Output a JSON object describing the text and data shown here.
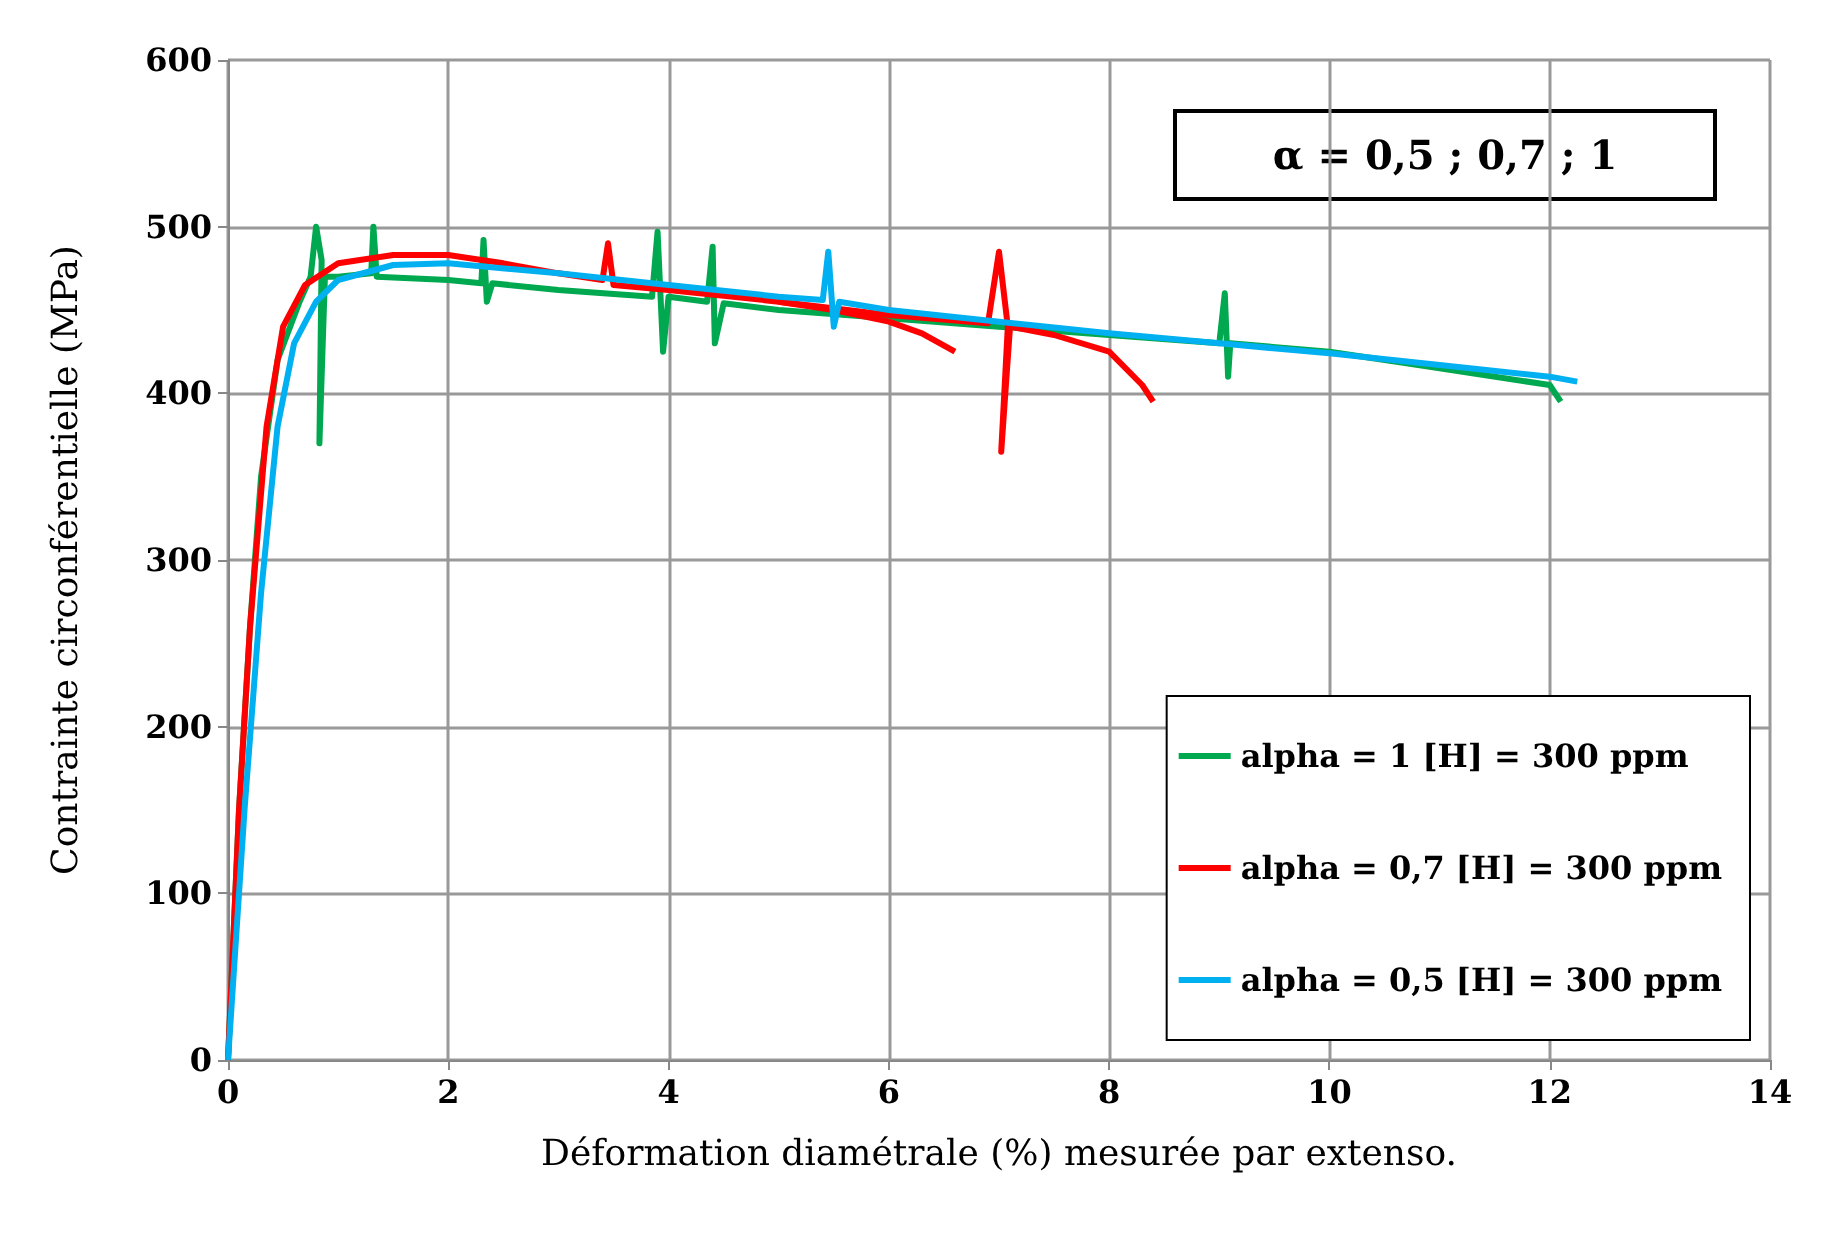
{
  "chart_data": {
    "type": "line",
    "xlabel": "Déformation diamétrale (%) mesurée par extenso.",
    "ylabel": "Contrainte circonférentielle (MPa)",
    "annotations": [
      "α = 0,5 ; 0,7 ; 1"
    ],
    "xlim": [
      0,
      14
    ],
    "xticks": [
      0,
      2,
      4,
      6,
      8,
      10,
      12,
      14
    ],
    "ylim": [
      0,
      600
    ],
    "yticks": [
      0,
      100,
      200,
      300,
      400,
      500,
      600
    ],
    "grid": true,
    "legend": "bottom right",
    "marker": "none",
    "line_style": "solid",
    "series": [
      {
        "name": "alpha = 1 [H] = 300 ppm",
        "color": "#00a84f",
        "x": [
          0,
          0.1,
          0.2,
          0.3,
          0.45,
          0.65,
          0.75,
          0.8,
          0.85,
          0.83,
          0.88,
          1.0,
          1.3,
          1.32,
          1.35,
          2,
          2.3,
          2.32,
          2.35,
          2.4,
          3,
          3.85,
          3.9,
          3.95,
          4.0,
          4.35,
          4.4,
          4.42,
          4.5,
          5,
          6,
          7,
          8,
          9,
          9.05,
          9.08,
          9.1,
          10,
          10.7,
          11,
          12,
          12.1
        ],
        "values": [
          0,
          150,
          260,
          350,
          420,
          455,
          470,
          500,
          480,
          370,
          470,
          470,
          472,
          500,
          470,
          468,
          466,
          492,
          455,
          466,
          462,
          458,
          497,
          425,
          458,
          455,
          488,
          430,
          454,
          450,
          445,
          440,
          435,
          430,
          460,
          410,
          430,
          425,
          418,
          415,
          405,
          395
        ]
      },
      {
        "name": "alpha = 0,7 [H] = 300 ppm",
        "color": "#ff0000",
        "x": [
          0,
          0.1,
          0.2,
          0.35,
          0.5,
          0.7,
          1,
          1.5,
          2,
          2.5,
          3,
          3.4,
          3.45,
          3.5,
          4,
          5,
          6,
          6.9,
          7.0,
          7.08,
          7.02,
          7.1,
          7.5,
          8,
          8.3,
          8.4
        ],
        "values": [
          0,
          150,
          260,
          380,
          440,
          465,
          478,
          483,
          483,
          478,
          472,
          468,
          490,
          465,
          462,
          455,
          447,
          442,
          485,
          440,
          365,
          440,
          435,
          425,
          405,
          395
        ]
      },
      {
        "color": "#ff0000",
        "x": [
          5,
          5.5,
          6,
          6.3,
          6.6
        ],
        "values": [
          455,
          450,
          443,
          436,
          425
        ]
      },
      {
        "name": "alpha = 0,5 [H] = 300 ppm",
        "color": "#00b0f0",
        "x": [
          0,
          0.15,
          0.3,
          0.45,
          0.6,
          0.8,
          1,
          1.5,
          2,
          3,
          4,
          5,
          5.4,
          5.45,
          5.5,
          5.55,
          6,
          7,
          8,
          9,
          10,
          11,
          12,
          12.25
        ],
        "values": [
          0,
          150,
          280,
          380,
          430,
          455,
          468,
          477,
          478,
          472,
          465,
          458,
          456,
          485,
          440,
          455,
          450,
          443,
          436,
          430,
          424,
          417,
          410,
          407
        ]
      }
    ]
  }
}
